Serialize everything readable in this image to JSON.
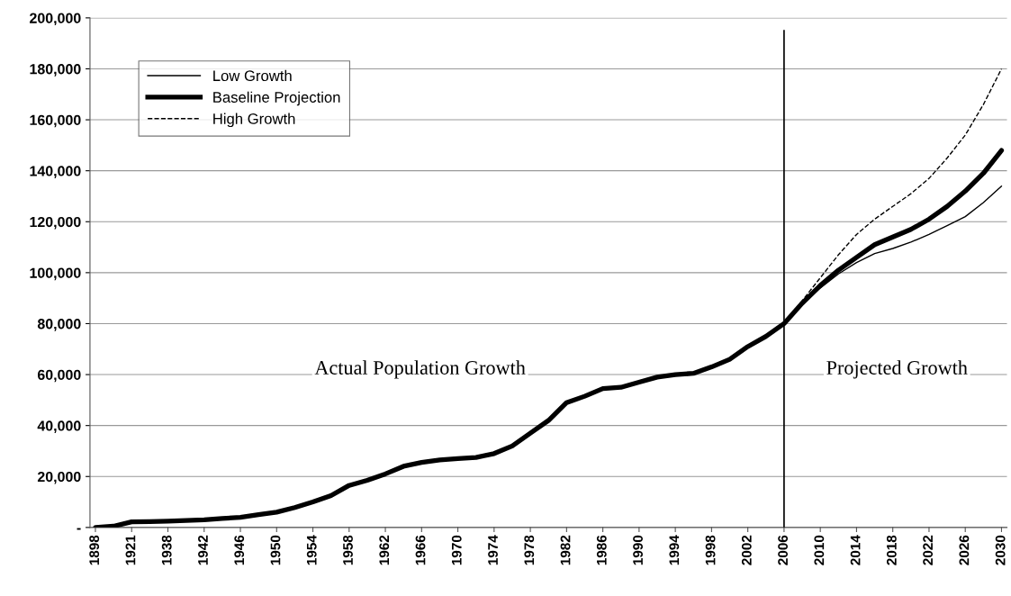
{
  "chart_data": {
    "type": "line",
    "categories": [
      "1898",
      null,
      "1921",
      null,
      "1938",
      null,
      "1942",
      null,
      "1946",
      null,
      "1950",
      null,
      "1954",
      null,
      "1958",
      null,
      "1962",
      null,
      "1966",
      null,
      "1970",
      null,
      "1974",
      null,
      "1978",
      null,
      "1982",
      null,
      "1986",
      null,
      "1990",
      null,
      "1994",
      null,
      "1998",
      null,
      "2002",
      null,
      "2006",
      null,
      "2010",
      null,
      "2014",
      null,
      "2018",
      null,
      "2022",
      null,
      "2026",
      null,
      "2030"
    ],
    "series": [
      {
        "name": "Low Growth",
        "color": "#000000",
        "line_style": "solid",
        "values": [
          null,
          null,
          null,
          null,
          null,
          null,
          null,
          null,
          null,
          null,
          null,
          null,
          null,
          null,
          null,
          null,
          null,
          null,
          null,
          null,
          null,
          null,
          null,
          null,
          null,
          null,
          null,
          null,
          null,
          null,
          null,
          null,
          null,
          null,
          null,
          null,
          null,
          null,
          80000,
          87500,
          94000,
          99500,
          104000,
          107500,
          109500,
          112000,
          115000,
          118500,
          122000,
          127500,
          134000
        ]
      },
      {
        "name": "Baseline Projection",
        "color": "#000000",
        "line_style": "solid",
        "values": [
          0,
          500,
          2200,
          2300,
          2500,
          2700,
          3000,
          3500,
          4000,
          5000,
          6000,
          7800,
          10000,
          12500,
          16500,
          18500,
          21000,
          24000,
          25500,
          26500,
          27000,
          27500,
          29000,
          32000,
          37000,
          42000,
          49000,
          51500,
          54500,
          55000,
          57000,
          59000,
          60000,
          60500,
          63000,
          66000,
          71000,
          75000,
          80000,
          88000,
          95000,
          101000,
          106000,
          111000,
          114000,
          117000,
          121000,
          126000,
          132000,
          139000,
          148000
        ]
      },
      {
        "name": "High Growth",
        "color": "#000000",
        "line_style": "dashed",
        "values": [
          null,
          null,
          null,
          null,
          null,
          null,
          null,
          null,
          null,
          null,
          null,
          null,
          null,
          null,
          null,
          null,
          null,
          null,
          null,
          null,
          null,
          null,
          null,
          null,
          null,
          null,
          null,
          null,
          null,
          null,
          null,
          null,
          null,
          null,
          null,
          null,
          null,
          null,
          80000,
          89000,
          98000,
          107000,
          115000,
          121000,
          126000,
          131000,
          137000,
          145000,
          154000,
          166000,
          180000
        ]
      }
    ],
    "ylim": [
      0,
      200000
    ],
    "yticks": [
      {
        "value": 0,
        "label": "-"
      },
      {
        "value": 20000,
        "label": "20,000"
      },
      {
        "value": 40000,
        "label": "40,000"
      },
      {
        "value": 60000,
        "label": "60,000"
      },
      {
        "value": 80000,
        "label": "80,000"
      },
      {
        "value": 100000,
        "label": "100,000"
      },
      {
        "value": 120000,
        "label": "120,000"
      },
      {
        "value": 140000,
        "label": "140,000"
      },
      {
        "value": 160000,
        "label": "160,000"
      },
      {
        "value": 180000,
        "label": "180,000"
      },
      {
        "value": 200000,
        "label": "200,000"
      }
    ],
    "ref_lines": [
      {
        "axis": "x",
        "value": "2006",
        "color": "#000000",
        "line_style": "solid"
      }
    ],
    "annotations": [
      "Actual Population Growth",
      "Projected Growth"
    ],
    "grid": "y",
    "legend": "top left",
    "marker": "none"
  }
}
